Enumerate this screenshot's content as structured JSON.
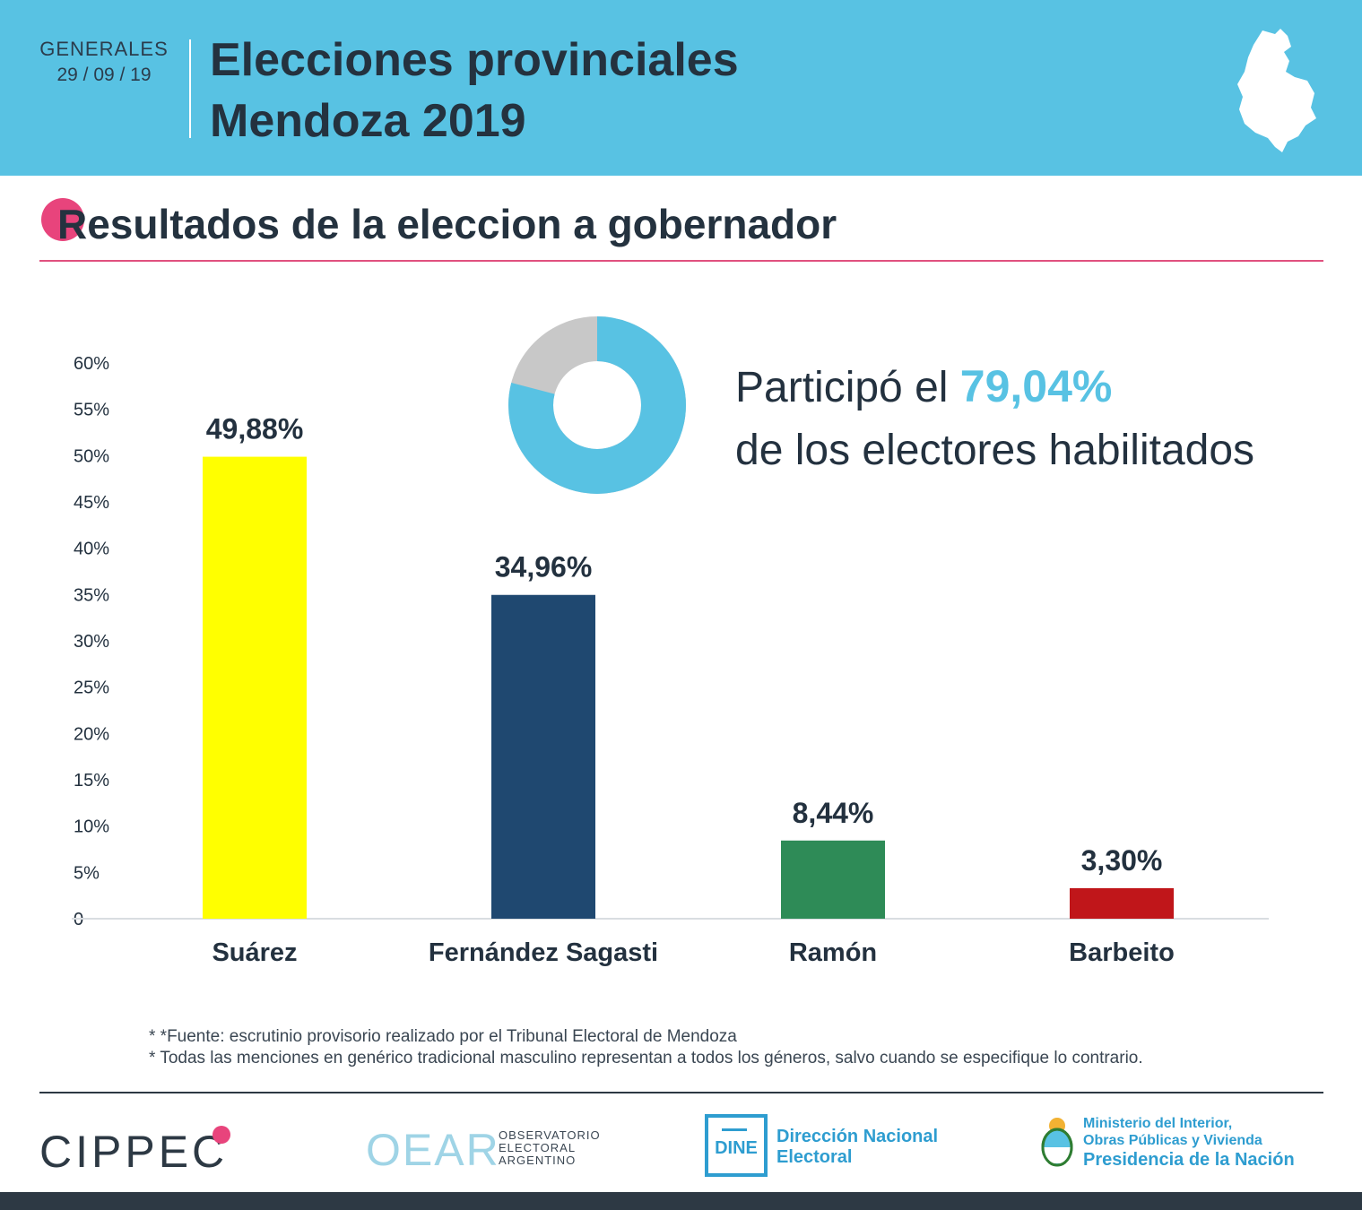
{
  "header": {
    "label": "GENERALES",
    "date": "29 / 09 / 19",
    "title_line1": "Elecciones provinciales",
    "title_line2": "Mendoza 2019"
  },
  "section": {
    "title": "Resultados de la eleccion a gobernador"
  },
  "turnout": {
    "text1": "Participó el",
    "percent_label": "79,04%",
    "text2": "de los electores habilitados",
    "percent_value": 79.04
  },
  "chart_data": {
    "type": "bar",
    "title": "Resultados de la eleccion a gobernador",
    "categories": [
      "Suárez",
      "Fernández Sagasti",
      "Ramón",
      "Barbeito"
    ],
    "values": [
      49.88,
      34.96,
      8.44,
      3.3
    ],
    "value_labels": [
      "49,88%",
      "34,96%",
      "8,44%",
      "3,30%"
    ],
    "colors": [
      "#ffff00",
      "#1f4870",
      "#2e8b57",
      "#c0161a"
    ],
    "ylim": [
      0,
      60
    ],
    "yticks": [
      0,
      5,
      10,
      15,
      20,
      25,
      30,
      35,
      40,
      45,
      50,
      55,
      60
    ],
    "ytick_labels": [
      "0",
      "5%",
      "10%",
      "15%",
      "20%",
      "25%",
      "30%",
      "35%",
      "40%",
      "45%",
      "50%",
      "55%",
      "60%"
    ],
    "xlabel": "",
    "ylabel": "",
    "grid": false
  },
  "donut": {
    "participation": 79.04,
    "colors": {
      "part": "#58c2e3",
      "rest": "#c8c8c8"
    }
  },
  "footnotes": {
    "f1": "* *Fuente: escrutinio provisorio realizado por el Tribunal Electoral de Mendoza",
    "f2": "* Todas las menciones en genérico tradicional masculino representan a todos los géneros, salvo cuando se especifique lo contrario."
  },
  "footer": {
    "cippec": "CIPPEC",
    "oear": "OEAR",
    "oear_sub": [
      "OBSERVATORIO",
      "ELECTORAL",
      "ARGENTINO"
    ],
    "dine_logo": "DINE",
    "dine_name1": "Dirección Nacional",
    "dine_name2": "Electoral",
    "min_line1": "Ministerio del Interior,",
    "min_line2": "Obras Públicas y Vivienda",
    "min_line3": "Presidencia de la Nación"
  },
  "colors": {
    "header_bg": "#58c2e3",
    "accent_pink": "#e8447c",
    "text_dark": "#23313f",
    "brand_blue": "#2e9dd0"
  }
}
